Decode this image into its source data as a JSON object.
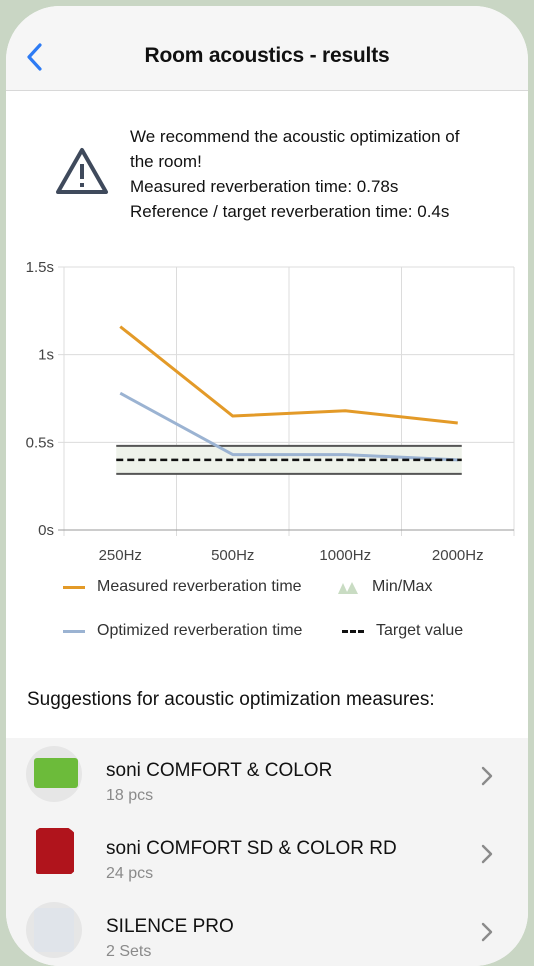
{
  "header": {
    "title": "Room acoustics - results",
    "back_icon": "chevron-left-icon"
  },
  "warning": {
    "icon": "warning-triangle-icon",
    "lines": [
      "We recommend the acoustic optimization of",
      "the room!",
      "Measured reverberation time: 0.78s",
      "Reference / target reverberation time: 0.4s"
    ]
  },
  "chart_data": {
    "type": "line",
    "categories": [
      "250Hz",
      "500Hz",
      "1000Hz",
      "2000Hz"
    ],
    "y_ticks": [
      "0s",
      "0.5s",
      "1s",
      "1.5s"
    ],
    "ylim": [
      0,
      1.5
    ],
    "grid": true,
    "series": [
      {
        "name": "Measured reverberation time",
        "values": [
          1.16,
          0.65,
          0.68,
          0.61
        ],
        "color": "#e39a28"
      },
      {
        "name": "Optimized reverberation time",
        "values": [
          0.78,
          0.43,
          0.43,
          0.4
        ],
        "color": "#9bb3d2"
      }
    ],
    "min_max": {
      "name": "Min/Max",
      "min": 0.32,
      "max": 0.48,
      "color": "#c9dcc3"
    },
    "target": {
      "name": "Target value",
      "value": 0.4
    }
  },
  "suggestions": {
    "title": "Suggestions for acoustic optimization measures:",
    "items": [
      {
        "name": "soni COMFORT & COLOR",
        "sub": "18 pcs",
        "color": "#6cbb3a"
      },
      {
        "name": "soni COMFORT SD & COLOR RD",
        "sub": "24 pcs",
        "color": "#b0141c"
      },
      {
        "name": "SILENCE PRO",
        "sub": "2 Sets",
        "color": "#e0e4ea"
      }
    ]
  }
}
